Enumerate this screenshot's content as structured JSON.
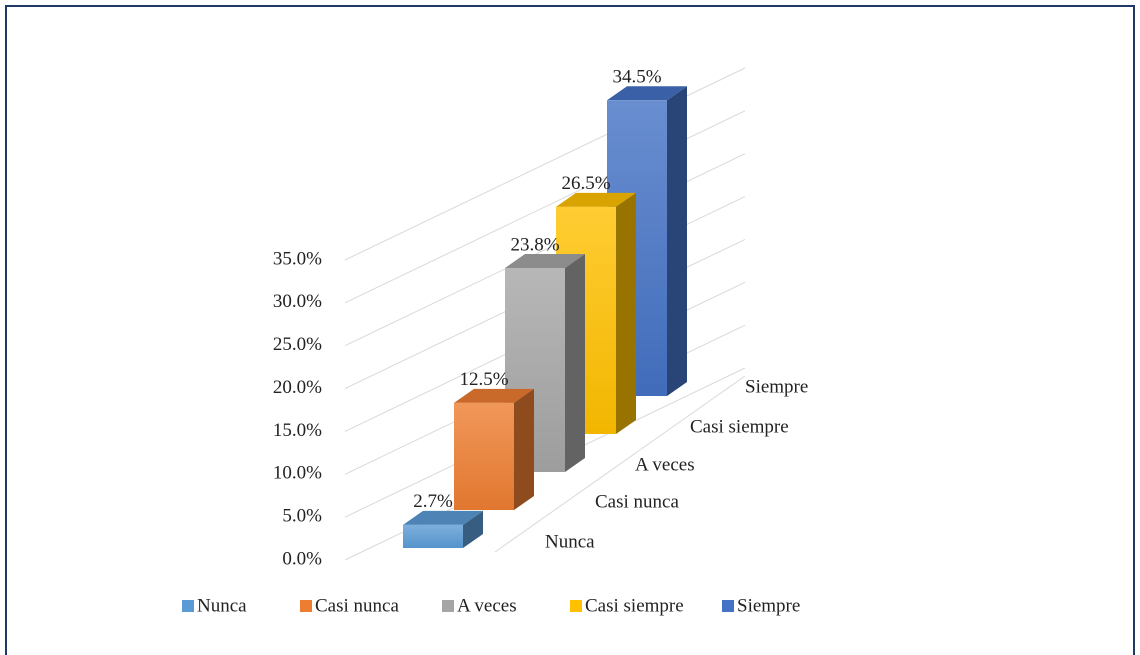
{
  "chart_data": {
    "type": "bar3d",
    "categories": [
      "Nunca",
      "Casi nunca",
      "A veces",
      "Casi siempre",
      "Siempre"
    ],
    "values": [
      2.7,
      12.5,
      23.8,
      26.5,
      34.5
    ],
    "value_labels": [
      "2.7%",
      "12.5%",
      "23.8%",
      "26.5%",
      "34.5%"
    ],
    "colors": [
      "#5b9bd5",
      "#ed7d31",
      "#a5a5a5",
      "#ffc000",
      "#4472c4"
    ],
    "ylim": [
      0,
      35
    ],
    "yticks": [
      {
        "value": 0,
        "label": "0.0%"
      },
      {
        "value": 5,
        "label": "5.0%"
      },
      {
        "value": 10,
        "label": "10.0%"
      },
      {
        "value": 15,
        "label": "15.0%"
      },
      {
        "value": 20,
        "label": "20.0%"
      },
      {
        "value": 25,
        "label": "25.0%"
      },
      {
        "value": 30,
        "label": "30.0%"
      },
      {
        "value": 35,
        "label": "35.0%"
      }
    ],
    "grid": true,
    "legend": "bottom"
  }
}
